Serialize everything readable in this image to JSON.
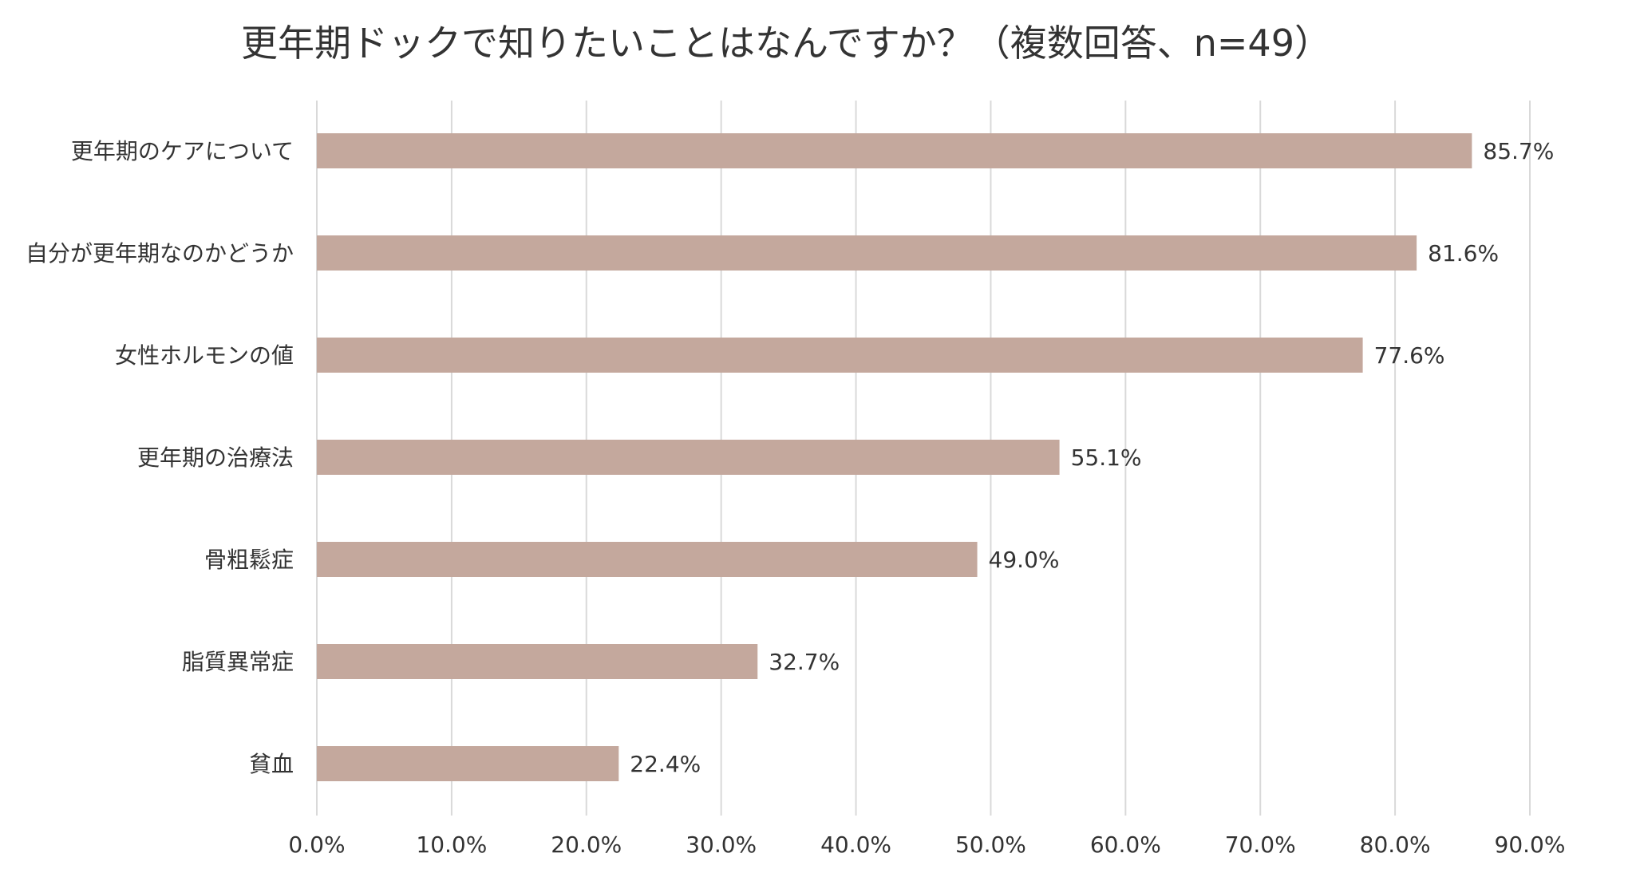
{
  "chart_data": {
    "type": "bar",
    "orientation": "horizontal",
    "title": "更年期ドックで知りたいことはなんですか？（複数回答、n=49）",
    "categories": [
      "更年期のケアについて",
      "自分が更年期なのかどうか",
      "女性ホルモンの値",
      "更年期の治療法",
      "骨粗鬆症",
      "脂質異常症",
      "貧血"
    ],
    "values": [
      85.7,
      81.6,
      77.6,
      55.1,
      49.0,
      32.7,
      22.4
    ],
    "value_labels": [
      "85.7%",
      "81.6%",
      "77.6%",
      "55.1%",
      "49.0%",
      "32.7%",
      "22.4%"
    ],
    "xlim": [
      0,
      90
    ],
    "x_ticks": [
      0,
      10,
      20,
      30,
      40,
      50,
      60,
      70,
      80,
      90
    ],
    "x_tick_labels": [
      "0.0%",
      "10.0%",
      "20.0%",
      "30.0%",
      "40.0%",
      "50.0%",
      "60.0%",
      "70.0%",
      "80.0%",
      "90.0%"
    ],
    "grid": true,
    "legend": "none",
    "colors": {
      "bar": "#c4a89d",
      "grid": "#d9d9d9",
      "text": "#333333"
    }
  }
}
